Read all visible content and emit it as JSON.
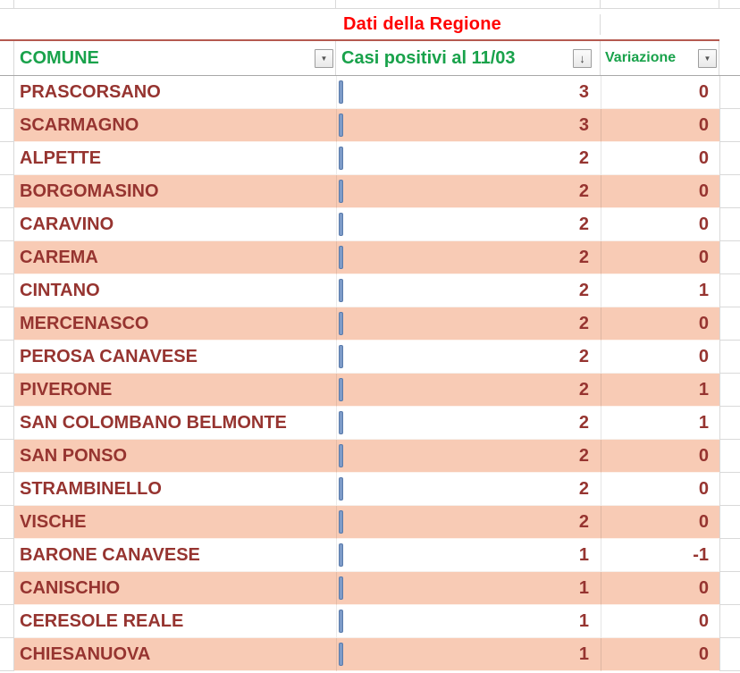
{
  "title": {
    "text": "Dati della Regione"
  },
  "header": {
    "comune_label": "COMUNE",
    "casi_label": "Casi positivi al 11/03",
    "variazione_label": "Variazione",
    "filter_dropdown_glyph": "▼",
    "sort_descending_glyph": "↓"
  },
  "colors": {
    "title_text": "#FF0000",
    "header_text": "#19A24B",
    "data_text": "#963430",
    "band_pink": "#F8CBB5",
    "band_white": "#FFFFFF",
    "divider_brown": "#B55A50",
    "marquee_blue": "#7D9BC8"
  },
  "rows": [
    {
      "comune": "PRASCORSANO",
      "casi": "3",
      "variazione": "0"
    },
    {
      "comune": "SCARMAGNO",
      "casi": "3",
      "variazione": "0"
    },
    {
      "comune": "ALPETTE",
      "casi": "2",
      "variazione": "0"
    },
    {
      "comune": "BORGOMASINO",
      "casi": "2",
      "variazione": "0"
    },
    {
      "comune": "CARAVINO",
      "casi": "2",
      "variazione": "0"
    },
    {
      "comune": "CAREMA",
      "casi": "2",
      "variazione": "0"
    },
    {
      "comune": "CINTANO",
      "casi": "2",
      "variazione": "1"
    },
    {
      "comune": "MERCENASCO",
      "casi": "2",
      "variazione": "0"
    },
    {
      "comune": "PEROSA CANAVESE",
      "casi": "2",
      "variazione": "0"
    },
    {
      "comune": "PIVERONE",
      "casi": "2",
      "variazione": "1"
    },
    {
      "comune": "SAN COLOMBANO BELMONTE",
      "casi": "2",
      "variazione": "1"
    },
    {
      "comune": "SAN PONSO",
      "casi": "2",
      "variazione": "0"
    },
    {
      "comune": "STRAMBINELLO",
      "casi": "2",
      "variazione": "0"
    },
    {
      "comune": "VISCHE",
      "casi": "2",
      "variazione": "0"
    },
    {
      "comune": "BARONE CANAVESE",
      "casi": "1",
      "variazione": "-1"
    },
    {
      "comune": "CANISCHIO",
      "casi": "1",
      "variazione": "0"
    },
    {
      "comune": "CERESOLE REALE",
      "casi": "1",
      "variazione": "0"
    },
    {
      "comune": "CHIESANUOVA",
      "casi": "1",
      "variazione": "0"
    }
  ]
}
